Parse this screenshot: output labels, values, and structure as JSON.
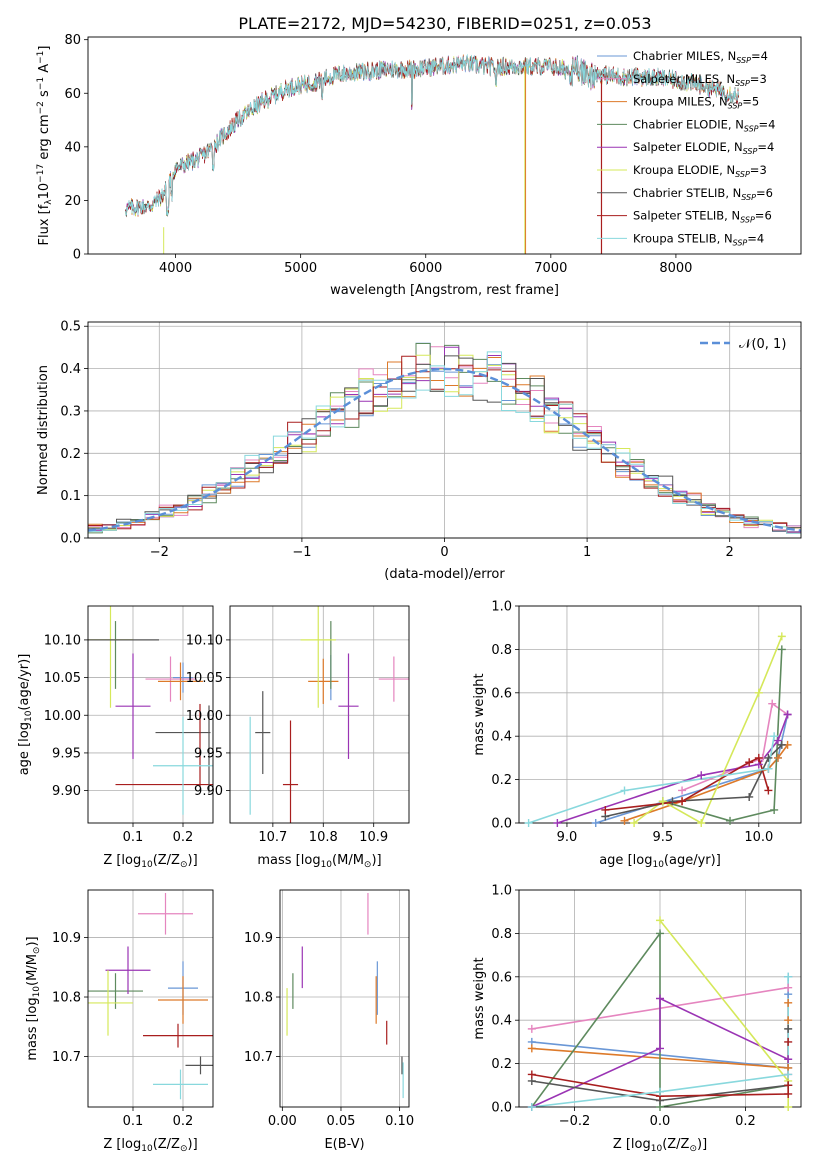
{
  "figure": {
    "title": "PLATE=2172, MJD=54230, FIBERID=0251, z=0.053"
  },
  "colors": {
    "Chabrier MILES": "#6a97d6",
    "Salpeter MILES": "#e585bf",
    "Kroupa MILES": "#dd7a2a",
    "Chabrier ELODIE": "#5e8a5e",
    "Salpeter ELODIE": "#9a34b4",
    "Kroupa ELODIE": "#d5e85a",
    "Chabrier STELIB": "#555555",
    "Salpeter STELIB": "#a81e1e",
    "Kroupa STELIB": "#88d8dd",
    "gaussian": "#5b8fd8"
  },
  "chart_data": [
    {
      "id": "spectrum",
      "type": "line",
      "xlabel": "wavelength [Angstrom, rest frame]",
      "ylabel_pre": "Flux [f",
      "ylabel_sub": "λ",
      "ylabel_mid": "10",
      "ylabel_sup1": "−17",
      "ylabel_post": " erg cm",
      "ylabel_sup2": "−2",
      "ylabel_s": " s",
      "ylabel_sup3": "−1",
      "ylabel_a": " A",
      "ylabel_sup4": "−1",
      "ylabel_end": "]",
      "xlim": [
        3300,
        9000
      ],
      "ylim": [
        0,
        81
      ],
      "xticks": [
        4000,
        5000,
        6000,
        7000,
        8000
      ],
      "yticks": [
        0,
        20,
        40,
        60,
        80
      ],
      "grid": false,
      "legend_placement": "right",
      "continuum_knots": [
        [
          3600,
          17
        ],
        [
          3800,
          18
        ],
        [
          3900,
          22
        ],
        [
          4000,
          32
        ],
        [
          4100,
          34
        ],
        [
          4200,
          36
        ],
        [
          4300,
          40
        ],
        [
          4500,
          50
        ],
        [
          4700,
          57
        ],
        [
          4900,
          62
        ],
        [
          5100,
          64
        ],
        [
          5300,
          67
        ],
        [
          5500,
          68
        ],
        [
          5700,
          69
        ],
        [
          5900,
          69
        ],
        [
          6100,
          70
        ],
        [
          6300,
          71
        ],
        [
          6500,
          70
        ],
        [
          6700,
          70
        ],
        [
          6900,
          70
        ],
        [
          7000,
          70
        ],
        [
          7200,
          68
        ],
        [
          7400,
          67
        ],
        [
          7600,
          66
        ],
        [
          7800,
          66
        ],
        [
          8000,
          65
        ],
        [
          8200,
          63
        ],
        [
          8500,
          59
        ]
      ],
      "series": [
        {
          "label": "Chabrier MILES",
          "nssp": "4"
        },
        {
          "label": "Salpeter MILES",
          "nssp": "3"
        },
        {
          "label": "Kroupa MILES",
          "nssp": "5"
        },
        {
          "label": "Chabrier ELODIE",
          "nssp": "4"
        },
        {
          "label": "Salpeter ELODIE",
          "nssp": "4"
        },
        {
          "label": "Kroupa ELODIE",
          "nssp": "3"
        },
        {
          "label": "Chabrier STELIB",
          "nssp": "6"
        },
        {
          "label": "Salpeter STELIB",
          "nssp": "6"
        },
        {
          "label": "Kroupa STELIB",
          "nssp": "4"
        }
      ],
      "legend_nssp_prefix": "N",
      "legend_nssp_sub": "SSP"
    },
    {
      "id": "residuals",
      "type": "line",
      "xlabel": "(data-model)/error",
      "ylabel": "Normed distribution",
      "xlim": [
        -2.5,
        2.5
      ],
      "ylim": [
        0,
        0.51
      ],
      "xticks": [
        -2,
        -1,
        0,
        1,
        2
      ],
      "yticks": [
        0.0,
        0.1,
        0.2,
        0.3,
        0.4,
        0.5
      ],
      "grid": true,
      "legend_placement": "top-right",
      "gaussian_label": "𝒩(0, 1)"
    },
    {
      "id": "age_Z",
      "type": "scatter",
      "xlabel": "Z [log",
      "xlabel_sub": "10",
      "xlabel_post": "(Z/Z",
      "xlabel_sub2": "⊙",
      "xlabel_end": ")]",
      "ylabel": "age  [log",
      "ylabel_sub": "10",
      "ylabel_post": "(age/yr)]",
      "xlim": [
        0.01,
        0.26
      ],
      "ylim": [
        9.857,
        10.145
      ],
      "xticks": [
        0.1,
        0.2
      ],
      "yticks": [
        9.9,
        9.95,
        10.0,
        10.05,
        10.1
      ],
      "grid": true,
      "points": [
        {
          "series": "Chabrier MILES",
          "x": 0.2,
          "y": 10.05,
          "xerr": 0.02,
          "yerr": 0.02
        },
        {
          "series": "Salpeter MILES",
          "x": 0.175,
          "y": 10.048,
          "xerr": 0.05,
          "yerr": 0.03
        },
        {
          "series": "Kroupa MILES",
          "x": 0.195,
          "y": 10.045,
          "xerr": 0.045,
          "yerr": 0.025
        },
        {
          "series": "Chabrier ELODIE",
          "x": 0.065,
          "y": 10.08,
          "xerr": 0.0,
          "yerr": 0.045
        },
        {
          "series": "Salpeter ELODIE",
          "x": 0.1,
          "y": 10.012,
          "xerr": 0.035,
          "yerr": 0.07
        },
        {
          "series": "Kroupa ELODIE",
          "x": 0.055,
          "y": 10.1,
          "xerr": 0.045,
          "yerr": 0.09
        },
        {
          "series": "Chabrier STELIB",
          "x": 0.2,
          "y": 9.977,
          "xerr": 0.055,
          "yerr": 0.0
        },
        {
          "series": "Chabrier STELIB",
          "x": 0.08,
          "y": 10.1,
          "xerr": 0.072,
          "yerr": 0.0
        },
        {
          "series": "Salpeter STELIB",
          "x": 0.165,
          "y": 9.908,
          "xerr": 0.1,
          "yerr": 0.0
        },
        {
          "series": "Salpeter STELIB",
          "x": 0.234,
          "y": 9.96,
          "xerr": 0.0,
          "yerr": 0.055
        },
        {
          "series": "Chabrier STELIB",
          "x": 0.252,
          "y": 9.955,
          "xerr": 0.0,
          "yerr": 0.058
        },
        {
          "series": "Kroupa STELIB",
          "x": 0.2,
          "y": 9.933,
          "xerr": 0.06,
          "yerr": 0.065
        }
      ]
    },
    {
      "id": "age_mass",
      "type": "scatter",
      "xlabel": "mass [log",
      "xlabel_sub": "10",
      "xlabel_post": "(M/M",
      "xlabel_sub2": "⊙",
      "xlabel_end": ")]",
      "xlim": [
        10.615,
        10.97
      ],
      "ylim": [
        9.857,
        10.145
      ],
      "xticks": [
        10.7,
        10.8,
        10.9
      ],
      "yticks": [
        9.9,
        9.95,
        10.0,
        10.05,
        10.1
      ],
      "grid": true,
      "points": [
        {
          "series": "Chabrier MILES",
          "x": 10.815,
          "y": 10.05,
          "xerr": 0.0,
          "yerr": 0.03
        },
        {
          "series": "Salpeter MILES",
          "x": 10.94,
          "y": 10.048,
          "xerr": 0.03,
          "yerr": 0.03
        },
        {
          "series": "Kroupa MILES",
          "x": 10.8,
          "y": 10.045,
          "xerr": 0.03,
          "yerr": 0.03
        },
        {
          "series": "Chabrier ELODIE",
          "x": 10.815,
          "y": 10.08,
          "xerr": 0.0,
          "yerr": 0.045
        },
        {
          "series": "Salpeter ELODIE",
          "x": 10.85,
          "y": 10.012,
          "xerr": 0.02,
          "yerr": 0.07
        },
        {
          "series": "Kroupa ELODIE",
          "x": 10.79,
          "y": 10.1,
          "xerr": 0.035,
          "yerr": 0.09
        },
        {
          "series": "Chabrier STELIB",
          "x": 10.68,
          "y": 9.977,
          "xerr": 0.015,
          "yerr": 0.055
        },
        {
          "series": "Salpeter STELIB",
          "x": 10.735,
          "y": 9.908,
          "xerr": 0.015,
          "yerr": 0.085
        },
        {
          "series": "Kroupa STELIB",
          "x": 10.655,
          "y": 9.933,
          "xerr": 0.0,
          "yerr": 0.065
        }
      ]
    },
    {
      "id": "massweight_age",
      "type": "line",
      "xlabel": "age  [log",
      "xlabel_sub": "10",
      "xlabel_post": "(age/yr)]",
      "ylabel": "mass weight",
      "xlim": [
        8.75,
        10.22
      ],
      "ylim": [
        0,
        1.0
      ],
      "xticks": [
        9.0,
        9.5,
        10.0
      ],
      "yticks": [
        0.0,
        0.2,
        0.4,
        0.6,
        0.8,
        1.0
      ],
      "grid": true,
      "series": [
        {
          "name": "Chabrier MILES",
          "x": [
            9.15,
            10.05,
            10.1,
            10.15
          ],
          "y": [
            0.0,
            0.25,
            0.3,
            0.5
          ]
        },
        {
          "name": "Salpeter MILES",
          "x": [
            9.6,
            10.02,
            10.07,
            10.15
          ],
          "y": [
            0.15,
            0.3,
            0.55,
            0.5
          ]
        },
        {
          "name": "Kroupa MILES",
          "x": [
            9.3,
            9.6,
            10.05,
            10.1,
            10.15
          ],
          "y": [
            0.01,
            0.1,
            0.25,
            0.3,
            0.36
          ]
        },
        {
          "name": "Chabrier ELODIE",
          "x": [
            9.5,
            9.85,
            10.08,
            10.12
          ],
          "y": [
            0.1,
            0.01,
            0.06,
            0.8
          ]
        },
        {
          "name": "Salpeter ELODIE",
          "x": [
            8.95,
            9.7,
            10.0,
            10.1,
            10.15
          ],
          "y": [
            0.0,
            0.22,
            0.27,
            0.38,
            0.5
          ]
        },
        {
          "name": "Kroupa ELODIE",
          "x": [
            9.35,
            9.5,
            9.7,
            10.0,
            10.12
          ],
          "y": [
            0.0,
            0.1,
            0.0,
            0.6,
            0.86
          ]
        },
        {
          "name": "Chabrier STELIB",
          "x": [
            9.2,
            9.55,
            9.95,
            10.05,
            10.12
          ],
          "y": [
            0.03,
            0.1,
            0.12,
            0.3,
            0.36
          ]
        },
        {
          "name": "Salpeter STELIB",
          "x": [
            9.2,
            9.6,
            9.95,
            10.0,
            10.05
          ],
          "y": [
            0.06,
            0.1,
            0.28,
            0.3,
            0.15
          ]
        },
        {
          "name": "Kroupa STELIB",
          "x": [
            8.8,
            9.3,
            10.05,
            10.08
          ],
          "y": [
            0.0,
            0.15,
            0.25,
            0.4
          ]
        }
      ]
    },
    {
      "id": "mass_Z",
      "type": "scatter",
      "xlabel": "Z [log",
      "xlabel_sub": "10",
      "xlabel_post": "(Z/Z",
      "xlabel_sub2": "⊙",
      "xlabel_end": ")]",
      "ylabel": "mass [log",
      "ylabel_sub": "10",
      "ylabel_post": "(M/M",
      "ylabel_sub2": "⊙",
      "ylabel_end": ")]",
      "xlim": [
        0.01,
        0.26
      ],
      "ylim": [
        10.615,
        10.98
      ],
      "xticks": [
        0.1,
        0.2
      ],
      "yticks": [
        10.7,
        10.8,
        10.9
      ],
      "grid": true,
      "points": [
        {
          "series": "Chabrier MILES",
          "x": 0.2,
          "y": 10.815,
          "xerr": 0.03,
          "yerr": 0.045
        },
        {
          "series": "Salpeter MILES",
          "x": 0.165,
          "y": 10.94,
          "xerr": 0.055,
          "yerr": 0.035
        },
        {
          "series": "Kroupa MILES",
          "x": 0.2,
          "y": 10.795,
          "xerr": 0.05,
          "yerr": 0.04
        },
        {
          "series": "Chabrier ELODIE",
          "x": 0.065,
          "y": 10.81,
          "xerr": 0.055,
          "yerr": 0.03
        },
        {
          "series": "Salpeter ELODIE",
          "x": 0.09,
          "y": 10.845,
          "xerr": 0.045,
          "yerr": 0.04
        },
        {
          "series": "Kroupa ELODIE",
          "x": 0.05,
          "y": 10.79,
          "xerr": 0.05,
          "yerr": 0.055
        },
        {
          "series": "Chabrier STELIB",
          "x": 0.235,
          "y": 10.685,
          "xerr": 0.03,
          "yerr": 0.015
        },
        {
          "series": "Salpeter STELIB",
          "x": 0.19,
          "y": 10.735,
          "xerr": 0.07,
          "yerr": 0.02
        },
        {
          "series": "Kroupa STELIB",
          "x": 0.195,
          "y": 10.653,
          "xerr": 0.055,
          "yerr": 0.025
        }
      ]
    },
    {
      "id": "mass_ebv",
      "type": "scatter",
      "xlabel": "E(B-V)",
      "xlim": [
        -0.002,
        0.108
      ],
      "ylim": [
        10.615,
        10.98
      ],
      "xticks": [
        0.0,
        0.05,
        0.1
      ],
      "xticklabels": [
        "0.00",
        "0.05",
        "0.10"
      ],
      "yticks": [
        10.7,
        10.8,
        10.9
      ],
      "grid": true,
      "points": [
        {
          "series": "Chabrier MILES",
          "x": 0.081,
          "y": 10.815,
          "xerr": 0.0,
          "yerr": 0.045
        },
        {
          "series": "Salpeter MILES",
          "x": 0.073,
          "y": 10.94,
          "xerr": 0.0,
          "yerr": 0.035
        },
        {
          "series": "Kroupa MILES",
          "x": 0.08,
          "y": 10.795,
          "xerr": 0.0,
          "yerr": 0.04
        },
        {
          "series": "Chabrier ELODIE",
          "x": 0.009,
          "y": 10.81,
          "xerr": 0.0,
          "yerr": 0.03
        },
        {
          "series": "Salpeter ELODIE",
          "x": 0.017,
          "y": 10.85,
          "xerr": 0.0,
          "yerr": 0.035
        },
        {
          "series": "Kroupa ELODIE",
          "x": 0.004,
          "y": 10.775,
          "xerr": 0.0,
          "yerr": 0.04
        },
        {
          "series": "Chabrier STELIB",
          "x": 0.102,
          "y": 10.685,
          "xerr": 0.0,
          "yerr": 0.015
        },
        {
          "series": "Salpeter STELIB",
          "x": 0.089,
          "y": 10.74,
          "xerr": 0.0,
          "yerr": 0.02
        },
        {
          "series": "Kroupa STELIB",
          "x": 0.103,
          "y": 10.66,
          "xerr": 0.0,
          "yerr": 0.03
        }
      ]
    },
    {
      "id": "massweight_Z",
      "type": "line",
      "xlabel": "Z [log",
      "xlabel_sub": "10",
      "xlabel_post": "(Z/Z",
      "xlabel_sub2": "⊙",
      "xlabel_end": ")]",
      "ylabel": "mass weight",
      "xlim": [
        -0.33,
        0.33
      ],
      "ylim": [
        0,
        1.0
      ],
      "xticks": [
        -0.2,
        0.0,
        0.2
      ],
      "yticks": [
        0.0,
        0.2,
        0.4,
        0.6,
        0.8,
        1.0
      ],
      "grid": true,
      "series": [
        {
          "name": "Chabrier MILES",
          "x": [
            -0.3,
            0.3,
            0.3,
            0.3
          ],
          "y": [
            0.3,
            0.18,
            0.52,
            0.6
          ]
        },
        {
          "name": "Salpeter MILES",
          "x": [
            -0.3,
            0.3,
            0.3
          ],
          "y": [
            0.36,
            0.55,
            0.15
          ]
        },
        {
          "name": "Kroupa MILES",
          "x": [
            -0.3,
            0.3,
            0.3,
            0.3
          ],
          "y": [
            0.27,
            0.18,
            0.48,
            0.4
          ]
        },
        {
          "name": "Chabrier ELODIE",
          "x": [
            -0.3,
            0.0,
            0.0,
            0.3
          ],
          "y": [
            0.0,
            0.8,
            0.0,
            0.1
          ]
        },
        {
          "name": "Salpeter ELODIE",
          "x": [
            -0.3,
            0.0,
            0.0,
            0.3
          ],
          "y": [
            0.0,
            0.27,
            0.5,
            0.22
          ]
        },
        {
          "name": "Kroupa ELODIE",
          "x": [
            0.0,
            0.3,
            0.3
          ],
          "y": [
            0.86,
            0.12,
            0.0
          ]
        },
        {
          "name": "Chabrier STELIB",
          "x": [
            -0.3,
            0.0,
            0.3,
            0.3
          ],
          "y": [
            0.12,
            0.03,
            0.1,
            0.36
          ]
        },
        {
          "name": "Salpeter STELIB",
          "x": [
            -0.3,
            0.0,
            0.3,
            0.3,
            0.3
          ],
          "y": [
            0.15,
            0.05,
            0.06,
            0.3,
            0.1
          ]
        },
        {
          "name": "Kroupa STELIB",
          "x": [
            -0.3,
            0.0,
            0.3,
            0.3
          ],
          "y": [
            0.0,
            0.07,
            0.15,
            0.6
          ]
        }
      ]
    }
  ]
}
